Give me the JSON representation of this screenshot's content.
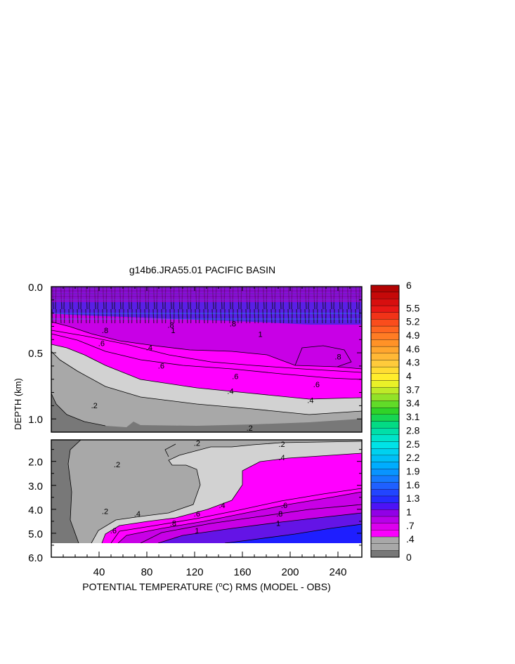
{
  "chart_data": {
    "type": "heatmap",
    "title": "g14b6.JRA55.01 PACIFIC BASIN",
    "xlabel_pre": "POTENTIAL TEMPERATURE (",
    "xlabel_sup": "o",
    "xlabel_post": "C) RMS (MODEL - OBS)",
    "ylabel": "DEPTH (km)",
    "xlim": [
      0,
      260
    ],
    "x_ticks": [
      "40",
      "80",
      "120",
      "160",
      "200",
      "240"
    ],
    "x_tick_values": [
      40,
      80,
      120,
      160,
      200,
      240
    ],
    "upper_panel": {
      "ylim": [
        0,
        1.1
      ],
      "y_ticks": [
        "0.0",
        "0.5",
        "1.0"
      ],
      "y_tick_values": [
        0,
        0.5,
        1.0
      ],
      "contour_labels": [
        {
          "text": ".8",
          "x": 45,
          "y": 0.35
        },
        {
          "text": ".6",
          "x": 42,
          "y": 0.45
        },
        {
          "text": ".6",
          "x": 92,
          "y": 0.62
        },
        {
          "text": ".8",
          "x": 100,
          "y": 0.31
        },
        {
          "text": ".8",
          "x": 152,
          "y": 0.3
        },
        {
          "text": ".6",
          "x": 154,
          "y": 0.7
        },
        {
          "text": ".6",
          "x": 222,
          "y": 0.76
        },
        {
          "text": ".8",
          "x": 240,
          "y": 0.55
        },
        {
          "text": ".4",
          "x": 82,
          "y": 0.48
        },
        {
          "text": ".4",
          "x": 150,
          "y": 0.81
        },
        {
          "text": ".4",
          "x": 217,
          "y": 0.88
        },
        {
          "text": ".2",
          "x": 36,
          "y": 0.92
        },
        {
          "text": ".2",
          "x": 166,
          "y": 1.09
        },
        {
          "text": "1",
          "x": 102,
          "y": 0.35
        },
        {
          "text": "1",
          "x": 175,
          "y": 0.38
        }
      ]
    },
    "lower_panel": {
      "ylim": [
        1.1,
        6.0
      ],
      "y_ticks": [
        "2.0",
        "3.0",
        "4.0",
        "5.0",
        "6.0"
      ],
      "y_tick_values": [
        2,
        3,
        4,
        5,
        6
      ],
      "no_data_below_depth": 5.4,
      "contour_labels": [
        {
          "text": ".2",
          "x": 55,
          "y": 2.25
        },
        {
          "text": ".2",
          "x": 122,
          "y": 1.35
        },
        {
          "text": ".2",
          "x": 193,
          "y": 1.4
        },
        {
          "text": ".2",
          "x": 45,
          "y": 4.2
        },
        {
          "text": ".4",
          "x": 72,
          "y": 4.3
        },
        {
          "text": ".4",
          "x": 143,
          "y": 3.95
        },
        {
          "text": ".4",
          "x": 193,
          "y": 1.95
        },
        {
          "text": ".6",
          "x": 52,
          "y": 5.0
        },
        {
          "text": ".6",
          "x": 122,
          "y": 4.3
        },
        {
          "text": ".6",
          "x": 195,
          "y": 3.95
        },
        {
          "text": ".8",
          "x": 102,
          "y": 4.7
        },
        {
          "text": ".8",
          "x": 191,
          "y": 4.3
        },
        {
          "text": "1",
          "x": 122,
          "y": 5.0
        },
        {
          "text": "1",
          "x": 190,
          "y": 4.7
        }
      ]
    },
    "colorbar": {
      "labels": [
        "6",
        "5.5",
        "5.2",
        "4.9",
        "4.6",
        "4.3",
        "4",
        "3.7",
        "3.4",
        "3.1",
        "2.8",
        "2.5",
        "2.2",
        "1.9",
        "1.6",
        "1.3",
        "1",
        ".7",
        ".4",
        "0"
      ],
      "label_values": [
        6,
        5.5,
        5.2,
        4.9,
        4.6,
        4.3,
        4,
        3.7,
        3.4,
        3.1,
        2.8,
        2.5,
        2.2,
        1.9,
        1.6,
        1.3,
        1,
        0.7,
        0.4,
        0
      ]
    },
    "colors": {
      "level_0_0.2": "#787878",
      "level_0.2_0.4": "#a8a8a8",
      "level_0.4_0.5": "#d2d2d2",
      "level_0.5_0.7": "#ff00ff",
      "level_0.7_1.0": "#c800e6",
      "level_1.0_1.3": "#1e1eff",
      "high_values": "#b40000"
    }
  }
}
